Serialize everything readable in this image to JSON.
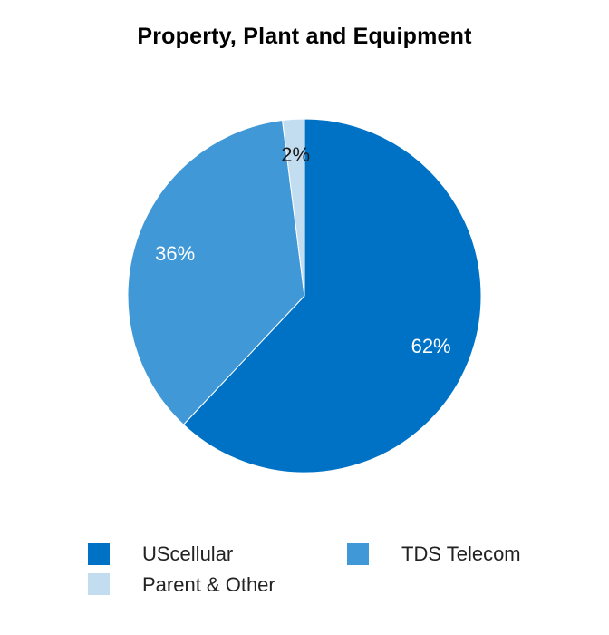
{
  "chart_data": {
    "type": "pie",
    "title": "Property, Plant and Equipment",
    "categories": [
      "UScellular",
      "TDS Telecom",
      "Parent & Other"
    ],
    "values": [
      62,
      36,
      2
    ],
    "value_labels": [
      "62%",
      "36%",
      "2%"
    ],
    "colors": [
      "#0072c6",
      "#4198d7",
      "#c3ddf0"
    ],
    "label_colors": [
      "#ffffff",
      "#ffffff",
      "#1a1a1a"
    ],
    "legend_position": "bottom"
  }
}
